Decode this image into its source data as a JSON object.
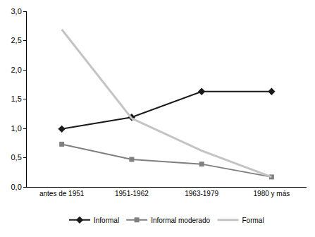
{
  "chart_data": {
    "type": "line",
    "categories": [
      "antes de 1951",
      "1951-1962",
      "1963-1979",
      "1980 y más"
    ],
    "series": [
      {
        "name": "Informal",
        "color": "#1a1a1a",
        "marker": "diamond",
        "line_style": "solid",
        "values": [
          0.99,
          1.19,
          1.63,
          1.63
        ]
      },
      {
        "name": "Informal moderado",
        "color": "#808080",
        "marker": "square",
        "line_style": "solid",
        "values": [
          0.73,
          0.47,
          0.39,
          0.17
        ]
      },
      {
        "name": "Formal",
        "color": "#c4c4c4",
        "marker": "none",
        "line_style": "solid",
        "values": [
          2.69,
          1.17,
          0.62,
          0.17
        ]
      }
    ],
    "ylim": [
      0,
      3
    ],
    "yticks": [
      {
        "value": 0,
        "label": "0,0"
      },
      {
        "value": 0.5,
        "label": "0,5"
      },
      {
        "value": 1,
        "label": "1,0"
      },
      {
        "value": 1.5,
        "label": "1,5"
      },
      {
        "value": 2,
        "label": "2,0"
      },
      {
        "value": 2.5,
        "label": "2,5"
      },
      {
        "value": 3,
        "label": "3,0"
      }
    ],
    "grid": false,
    "legend": "bottom"
  }
}
